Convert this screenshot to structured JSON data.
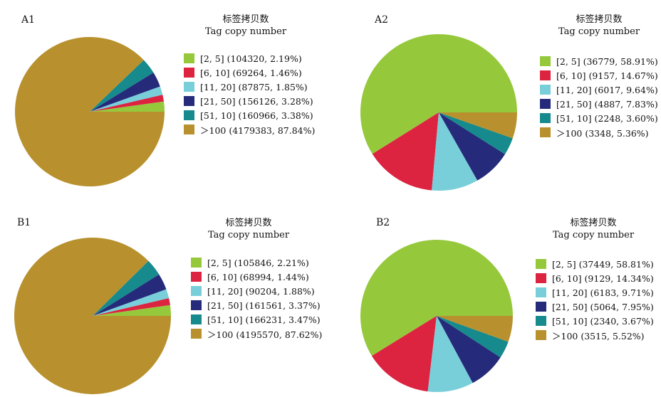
{
  "colors": [
    "#96c83c",
    "#dc2340",
    "#78cfd9",
    "#262a7a",
    "#168a8c",
    "#b8912e"
  ],
  "legend_title_cn": "标签拷贝数",
  "legend_title_en": "Tag copy number",
  "chart_data": [
    {
      "type": "pie",
      "panel": "A1",
      "categories": [
        "[2, 5]",
        "[6, 10]",
        "[11, 20]",
        "[21, 50]",
        "[51, 10]",
        "＞100"
      ],
      "values": [
        104320,
        69264,
        87875,
        156126,
        160966,
        4179383
      ],
      "percents": [
        2.19,
        1.46,
        1.85,
        3.28,
        3.38,
        87.84
      ],
      "labels": [
        "[2, 5] (104320, 2.19%)",
        "[6, 10] (69264, 1.46%)",
        "[11, 20] (87875, 1.85%)",
        "[21, 50] (156126, 3.28%)",
        "[51, 10] (160966, 3.38%)",
        "＞100 (4179383, 87.84%)"
      ]
    },
    {
      "type": "pie",
      "panel": "A2",
      "categories": [
        "[2, 5]",
        "[6, 10]",
        "[11, 20]",
        "[21, 50]",
        "[51, 10]",
        "＞100"
      ],
      "values": [
        36779,
        9157,
        6017,
        4887,
        2248,
        3348
      ],
      "percents": [
        58.91,
        14.67,
        9.64,
        7.83,
        3.6,
        5.36
      ],
      "labels": [
        "[2, 5] (36779, 58.91%)",
        "[6, 10] (9157, 14.67%)",
        "[11, 20] (6017, 9.64%)",
        "[21, 50] (4887, 7.83%)",
        "[51, 10] (2248, 3.60%)",
        "＞100 (3348, 5.36%)"
      ]
    },
    {
      "type": "pie",
      "panel": "B1",
      "categories": [
        "[2, 5]",
        "[6, 10]",
        "[11, 20]",
        "[21, 50]",
        "[51, 10]",
        "＞100"
      ],
      "values": [
        105846,
        68994,
        90204,
        161561,
        166231,
        4195570
      ],
      "percents": [
        2.21,
        1.44,
        1.88,
        3.37,
        3.47,
        87.62
      ],
      "labels": [
        "[2, 5] (105846, 2.21%)",
        "[6, 10] (68994, 1.44%)",
        "[11, 20] (90204, 1.88%)",
        "[21, 50] (161561, 3.37%)",
        "[51, 10] (166231, 3.47%)",
        "＞100 (4195570, 87.62%)"
      ]
    },
    {
      "type": "pie",
      "panel": "B2",
      "categories": [
        "[2, 5]",
        "[6, 10]",
        "[11, 20]",
        "[21, 50]",
        "[51, 10]",
        "＞100"
      ],
      "values": [
        37449,
        9129,
        6183,
        5064,
        2340,
        3515
      ],
      "percents": [
        58.81,
        14.34,
        9.71,
        7.95,
        3.67,
        5.52
      ],
      "labels": [
        "[2, 5] (37449, 58.81%)",
        "[6, 10] (9129, 14.34%)",
        "[11, 20] (6183, 9.71%)",
        "[21, 50] (5064, 7.95%)",
        "[51, 10] (2340, 3.67%)",
        "＞100 (3515, 5.52%)"
      ]
    }
  ]
}
